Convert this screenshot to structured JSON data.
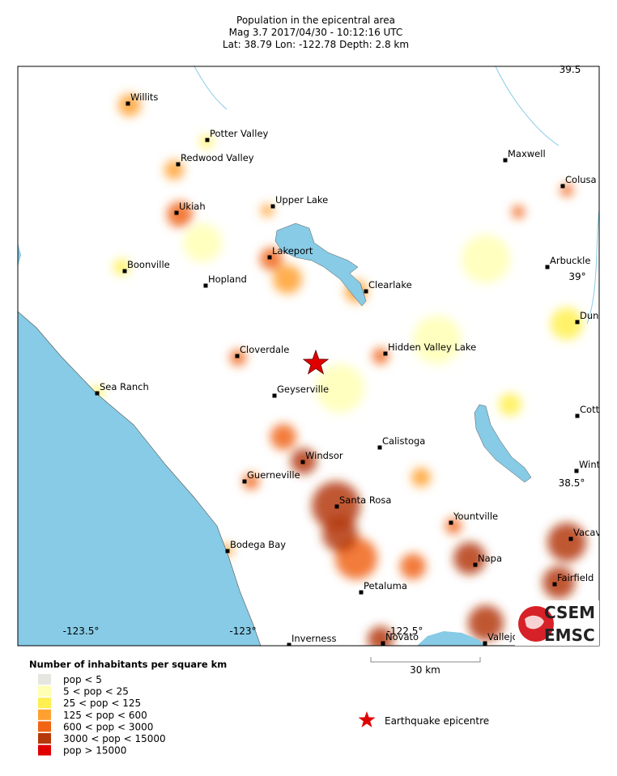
{
  "header": {
    "title": "Population in the epicentral area",
    "line2": "Mag 3.7  2017/04/30 - 10:12:16 UTC",
    "line3": "Lat: 38.79    Lon: -122.78     Depth:  2.8 km"
  },
  "map": {
    "cities": [
      "Willits",
      "Potter Valley",
      "Redwood Valley",
      "Upper Lake",
      "Ukiah",
      "Maxwell",
      "Colusa",
      "Lakeport",
      "Boonville",
      "Hopland",
      "Arbuckle",
      "Clearlake",
      "Dunn",
      "Cloverdale",
      "Hidden Valley Lake",
      "Sea Ranch",
      "Geyserville",
      "Cotto",
      "Calistoga",
      "Windsor",
      "Winte",
      "Guerneville",
      "Santa Rosa",
      "Yountville",
      "Vacav",
      "Bodega Bay",
      "Napa",
      "Fairfield",
      "Petaluma",
      "Inverness",
      "Novato",
      "Vallejo"
    ],
    "graticule_labels": [
      "-123.5°",
      "-123°",
      "-122.5°",
      "39.5",
      "39°",
      "38.5°"
    ],
    "scale_label": "30 km"
  },
  "legend": {
    "title": "Number of inhabitants per square km",
    "items": [
      {
        "label": "pop < 5",
        "color": "#e6e6e0"
      },
      {
        "label": "5 < pop < 25",
        "color": "#ffffb4"
      },
      {
        "label": "25 < pop < 125",
        "color": "#fff050"
      },
      {
        "label": "125 < pop < 600",
        "color": "#ffa030"
      },
      {
        "label": "600 < pop < 3000",
        "color": "#f06414"
      },
      {
        "label": "3000 < pop < 15000",
        "color": "#b4380a"
      },
      {
        "label": "pop > 15000",
        "color": "#e00000"
      }
    ],
    "epicentre_label": "Earthquake epicentre"
  },
  "logo": {
    "top": "CSEM",
    "bottom": "EMSC"
  }
}
